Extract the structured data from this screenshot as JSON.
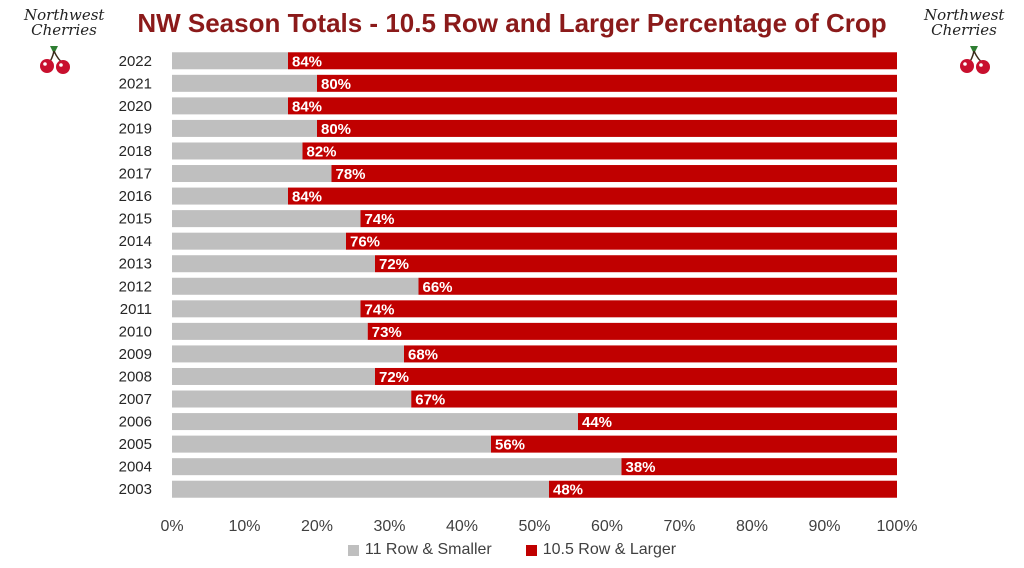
{
  "chart_data": {
    "type": "bar",
    "orientation": "horizontal",
    "stacked": true,
    "title": "NW Season Totals - 10.5 Row and Larger Percentage of Crop",
    "categories": [
      "2022",
      "2021",
      "2020",
      "2019",
      "2018",
      "2017",
      "2016",
      "2015",
      "2014",
      "2013",
      "2012",
      "2011",
      "2010",
      "2009",
      "2008",
      "2007",
      "2006",
      "2005",
      "2004",
      "2003"
    ],
    "series": [
      {
        "name": "11 Row & Smaller",
        "color": "#bfbfbf",
        "values": [
          16,
          20,
          16,
          20,
          18,
          22,
          16,
          26,
          24,
          28,
          34,
          26,
          27,
          32,
          28,
          33,
          56,
          44,
          62,
          52
        ]
      },
      {
        "name": "10.5 Row & Larger",
        "color": "#c00000",
        "values": [
          84,
          80,
          84,
          80,
          82,
          78,
          84,
          74,
          76,
          72,
          66,
          74,
          73,
          68,
          72,
          67,
          44,
          56,
          38,
          48
        ]
      }
    ],
    "data_labels": [
      "84%",
      "80%",
      "84%",
      "80%",
      "82%",
      "78%",
      "84%",
      "74%",
      "76%",
      "72%",
      "66%",
      "74%",
      "73%",
      "68%",
      "72%",
      "67%",
      "44%",
      "56%",
      "38%",
      "48%"
    ],
    "x_ticks": [
      "0%",
      "10%",
      "20%",
      "30%",
      "40%",
      "50%",
      "60%",
      "70%",
      "80%",
      "90%",
      "100%"
    ],
    "xlim": [
      0,
      100
    ],
    "grid": false,
    "legend_position": "bottom"
  },
  "logo": {
    "text_line1": "Northwest",
    "text_line2": "Cherries"
  },
  "colors": {
    "title": "#8b1a1a",
    "cherry_red": "#c8102e",
    "leaf_green": "#2e7d32"
  }
}
